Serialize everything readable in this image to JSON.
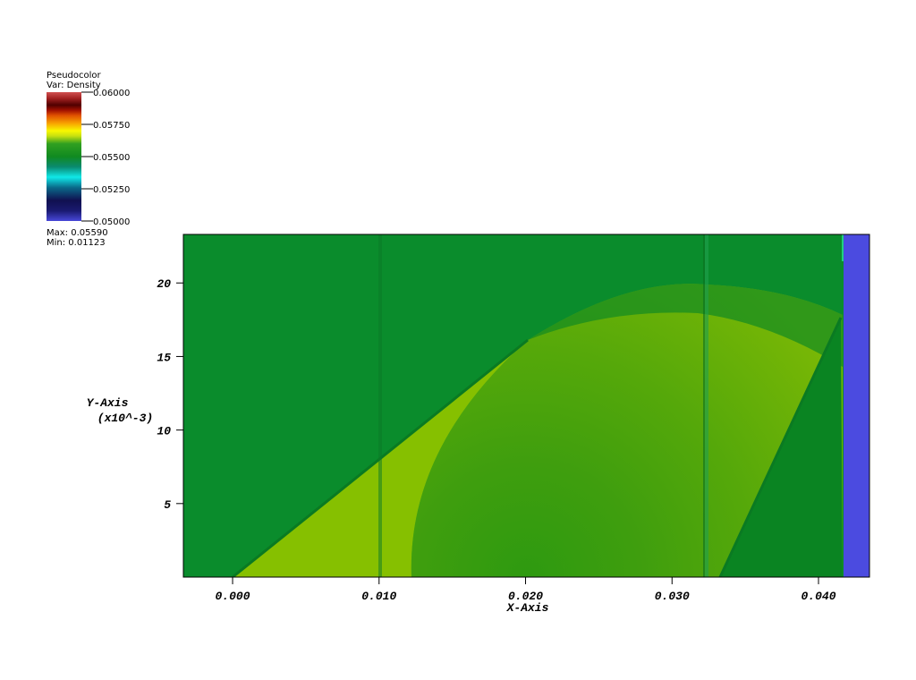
{
  "chart_data": {
    "type": "pseudocolor",
    "legend": {
      "title": "Pseudocolor",
      "variable": "Var: Density",
      "ticks": [
        {
          "value": 0.06,
          "label": "0.06000"
        },
        {
          "value": 0.0575,
          "label": "0.05750"
        },
        {
          "value": 0.055,
          "label": "0.05500"
        },
        {
          "value": 0.0525,
          "label": "0.05250"
        },
        {
          "value": 0.05,
          "label": "0.05000"
        }
      ],
      "range": [
        0.05,
        0.06
      ],
      "max": {
        "value": 0.0559,
        "label": "Max: 0.05590"
      },
      "min": {
        "value": 0.01123,
        "label": "Min: 0.01123"
      }
    },
    "xlabel": "X-Axis",
    "ylabel": "Y-Axis",
    "yscale_label": "(x10^-3)",
    "xlim": [
      -0.00336,
      0.04348
    ],
    "xticks": [
      {
        "value": 0,
        "label": "0.000"
      },
      {
        "value": 0.01,
        "label": "0.010"
      },
      {
        "value": 0.02,
        "label": "0.020"
      },
      {
        "value": 0.03,
        "label": "0.030"
      },
      {
        "value": 0.04,
        "label": "0.040"
      }
    ],
    "ylim": [
      0,
      23.3
    ],
    "yticks": [
      5,
      10,
      15,
      20
    ]
  }
}
